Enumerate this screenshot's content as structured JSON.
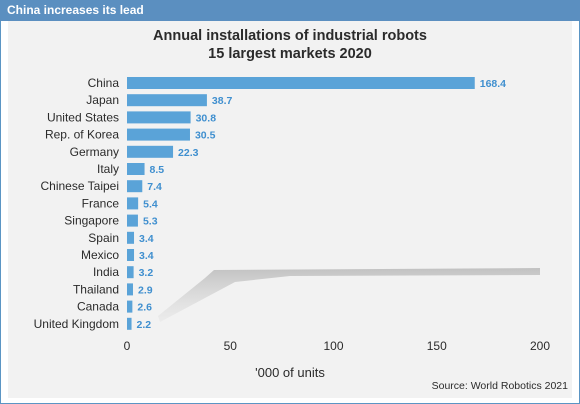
{
  "banner": "China increases its lead",
  "source": "Source: World Robotics 2021",
  "chart_data": {
    "type": "bar",
    "orientation": "horizontal",
    "title": "Annual installations of industrial robots",
    "subtitle": "15 largest markets 2020",
    "xlabel": "'000 of units",
    "ylabel": "",
    "xlim": [
      0,
      200
    ],
    "xticks": [
      0,
      50,
      100,
      150,
      200
    ],
    "grid": false,
    "colors": {
      "bar": "#5aa3d8",
      "label": "#3f8fcf"
    },
    "categories": [
      "China",
      "Japan",
      "United States",
      "Rep. of Korea",
      "Germany",
      "Italy",
      "Chinese Taipei",
      "France",
      "Singapore",
      "Spain",
      "Mexico",
      "India",
      "Thailand",
      "Canada",
      "United Kingdom"
    ],
    "values": [
      168.4,
      38.7,
      30.8,
      30.5,
      22.3,
      8.5,
      7.4,
      5.4,
      5.3,
      3.4,
      3.4,
      3.2,
      2.9,
      2.6,
      2.2
    ],
    "value_labels": [
      "168.4",
      "38.7",
      "30.8",
      "30.5",
      "22.3",
      "8.5",
      "7.4",
      "5.4",
      "5.3",
      "3.4",
      "3.4",
      "3.2",
      "2.9",
      "2.6",
      "2.2"
    ]
  }
}
